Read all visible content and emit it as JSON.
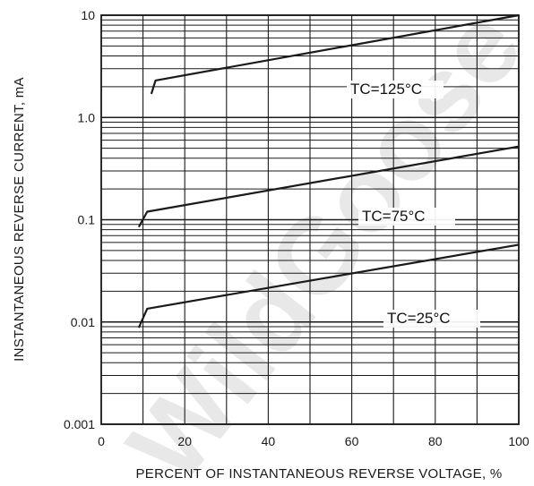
{
  "chart_data": {
    "type": "line",
    "xlabel": "PERCENT OF INSTANTANEOUS REVERSE VOLTAGE, %",
    "ylabel": "INSTANTANEOUS REVERSE CURRENT, mA",
    "xlim": [
      0,
      100
    ],
    "ylim": [
      0.001,
      10
    ],
    "yscale": "log",
    "grid": true,
    "x_ticks": [
      "0",
      "20",
      "40",
      "60",
      "80",
      "100"
    ],
    "y_ticks": [
      "0.001",
      "0.01",
      "0.1",
      "1.0",
      "10"
    ],
    "series": [
      {
        "name": "TC=125°C",
        "x": [
          12,
          13,
          100
        ],
        "y": [
          1.7,
          2.3,
          10
        ]
      },
      {
        "name": "TC=75°C",
        "x": [
          9,
          11,
          100
        ],
        "y": [
          0.085,
          0.12,
          0.52
        ]
      },
      {
        "name": "TC=25°C",
        "x": [
          9,
          11,
          100
        ],
        "y": [
          0.0088,
          0.0135,
          0.057
        ]
      }
    ],
    "watermark": "WildGoose"
  },
  "colors": {
    "line": "#1a1a1a",
    "grid": "#1a1a1a",
    "watermark": "#e8e8e8"
  }
}
